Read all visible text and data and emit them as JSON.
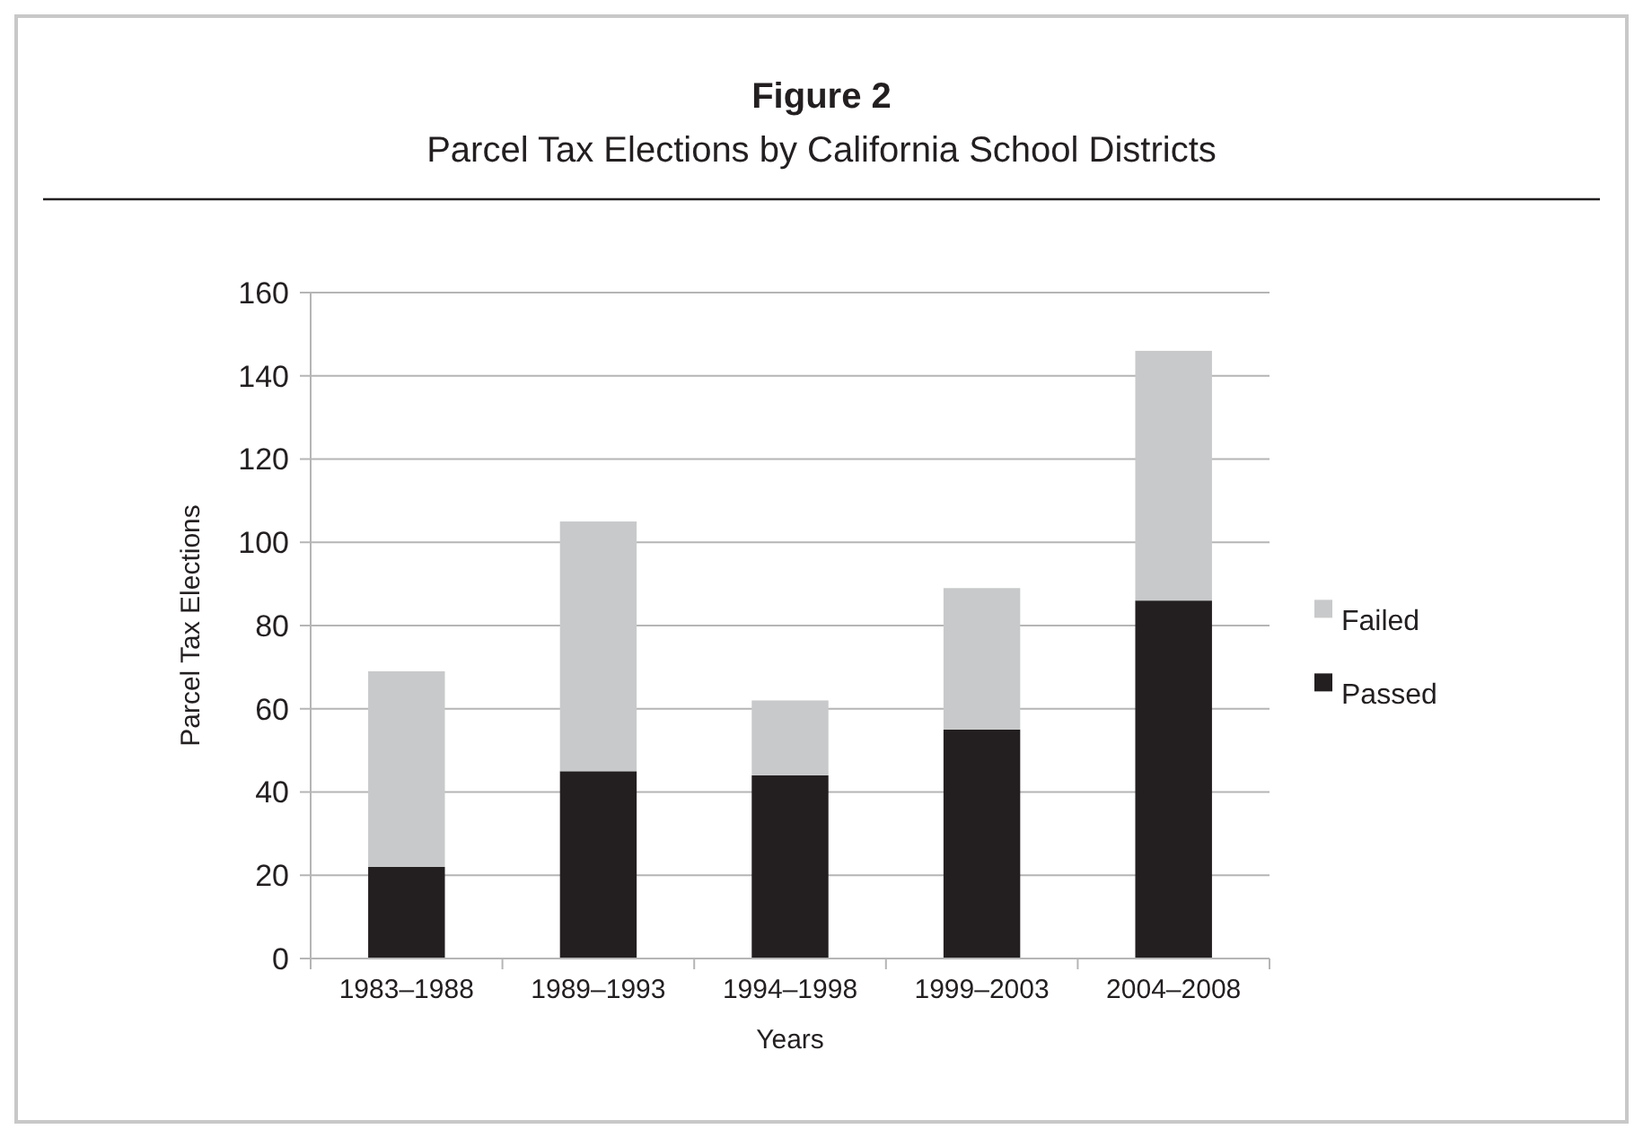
{
  "chart_data": {
    "type": "bar",
    "title": "Figure 2",
    "subtitle": "Parcel Tax Elections by California School Districts",
    "xlabel": "Years",
    "ylabel": "Parcel Tax Elections",
    "categories": [
      "1983–1988",
      "1989–1993",
      "1994–1998",
      "1999–2003",
      "2004–2008"
    ],
    "series": [
      {
        "name": "Passed",
        "color": "#231f20",
        "values": [
          22,
          45,
          44,
          55,
          86
        ]
      },
      {
        "name": "Failed",
        "color": "#c8c9ca",
        "values": [
          47,
          60,
          18,
          34,
          60
        ]
      }
    ],
    "stacked": true,
    "ylim": [
      0,
      160
    ],
    "yticks": [
      0,
      20,
      40,
      60,
      80,
      100,
      120,
      140,
      160
    ],
    "grid": "y",
    "legend": "right"
  }
}
